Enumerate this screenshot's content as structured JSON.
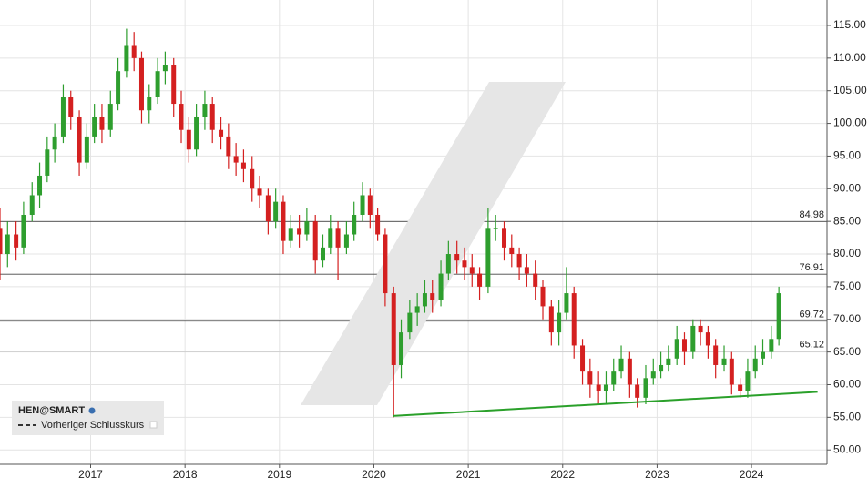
{
  "chart_data": {
    "type": "candlestick",
    "series": [
      {
        "name": "HEN@SMART",
        "up_color": "#2e9e2e",
        "down_color": "#d42020",
        "x": [
          2016.04,
          2016.12,
          2016.21,
          2016.29,
          2016.38,
          2016.46,
          2016.54,
          2016.62,
          2016.71,
          2016.79,
          2016.88,
          2016.96,
          2017.04,
          2017.12,
          2017.21,
          2017.29,
          2017.38,
          2017.46,
          2017.54,
          2017.62,
          2017.71,
          2017.79,
          2017.88,
          2017.96,
          2018.04,
          2018.12,
          2018.21,
          2018.29,
          2018.38,
          2018.46,
          2018.54,
          2018.62,
          2018.71,
          2018.79,
          2018.88,
          2018.96,
          2019.04,
          2019.12,
          2019.21,
          2019.29,
          2019.38,
          2019.46,
          2019.54,
          2019.62,
          2019.71,
          2019.79,
          2019.88,
          2019.96,
          2020.04,
          2020.12,
          2020.21,
          2020.29,
          2020.38,
          2020.46,
          2020.54,
          2020.62,
          2020.71,
          2020.79,
          2020.88,
          2020.96,
          2021.04,
          2021.12,
          2021.21,
          2021.29,
          2021.38,
          2021.46,
          2021.54,
          2021.62,
          2021.71,
          2021.79,
          2021.88,
          2021.96,
          2022.04,
          2022.12,
          2022.21,
          2022.29,
          2022.38,
          2022.46,
          2022.54,
          2022.62,
          2022.71,
          2022.79,
          2022.88,
          2022.96,
          2023.04,
          2023.12,
          2023.21,
          2023.29,
          2023.38,
          2023.46,
          2023.54,
          2023.62,
          2023.71,
          2023.79,
          2023.88,
          2023.96,
          2024.04,
          2024.12,
          2024.21,
          2024.29
        ],
        "open": [
          84,
          80,
          83,
          81,
          86,
          89,
          92,
          96,
          98,
          104,
          101,
          94,
          98,
          101,
          99,
          103,
          108,
          112,
          110,
          102,
          104,
          108,
          109,
          103,
          99,
          96,
          101,
          103,
          99,
          98,
          95,
          94,
          93,
          90,
          89,
          85,
          88,
          82,
          84,
          83,
          85,
          79,
          81,
          84,
          81,
          83,
          86,
          89,
          86,
          83,
          74,
          63,
          68,
          71,
          72,
          74,
          73,
          77,
          80,
          79,
          78,
          77,
          75,
          84,
          84,
          81,
          80,
          78,
          77,
          75,
          72,
          68,
          71,
          74,
          66,
          62,
          60,
          59,
          60,
          62,
          64,
          60,
          58,
          61,
          62,
          63,
          64,
          67,
          65,
          69,
          68,
          66,
          63,
          64,
          60,
          59,
          62,
          64,
          65,
          67
        ],
        "high": [
          87,
          85,
          85,
          88,
          91,
          94,
          98,
          100,
          106,
          105,
          102,
          100,
          103,
          103,
          105,
          110,
          114.5,
          114,
          111,
          106,
          110,
          111,
          110,
          105,
          101,
          103,
          105,
          104,
          101,
          100,
          97,
          96,
          95,
          92,
          90,
          90,
          89,
          86,
          86,
          87,
          86,
          83,
          86,
          85,
          85,
          88,
          91,
          90,
          87,
          84,
          75,
          70,
          73,
          74,
          76,
          76,
          79,
          82,
          82,
          81,
          80,
          78,
          87,
          86,
          85,
          83,
          81,
          80,
          79,
          76,
          73,
          73,
          78,
          75,
          67,
          64,
          62,
          62,
          64,
          66,
          65,
          61,
          63,
          64,
          65,
          66,
          69,
          68,
          70,
          70,
          69,
          67,
          66,
          65,
          61,
          64,
          66,
          67,
          69,
          75
        ],
        "low": [
          76,
          78,
          79,
          80,
          85,
          87,
          91,
          94,
          97,
          99,
          92,
          93,
          97,
          97,
          98,
          102,
          107,
          108,
          100,
          100,
          103,
          106,
          101,
          97,
          94,
          95,
          99,
          97,
          96,
          93,
          92,
          91,
          88,
          87,
          83,
          84,
          80,
          81,
          81,
          82,
          77,
          78,
          80,
          76,
          80,
          82,
          85,
          84,
          82,
          72,
          55,
          61,
          67,
          69,
          71,
          71,
          72,
          76,
          77,
          76,
          75,
          73,
          74,
          82,
          79,
          78,
          76,
          75,
          73,
          70,
          66,
          66,
          70,
          64,
          60,
          58,
          57,
          57,
          59,
          61,
          58,
          56.5,
          57,
          60,
          61,
          62,
          63,
          63,
          64,
          66,
          64,
          61,
          62,
          58.5,
          58,
          58,
          61,
          63,
          64,
          66
        ],
        "close": [
          80,
          83,
          81,
          86,
          89,
          92,
          96,
          98,
          104,
          101,
          94,
          98,
          101,
          99,
          103,
          108,
          112,
          110,
          102,
          104,
          108,
          109,
          103,
          99,
          96,
          101,
          103,
          99,
          98,
          95,
          94,
          93,
          90,
          89,
          85,
          88,
          82,
          84,
          83,
          85,
          79,
          81,
          84,
          81,
          83,
          86,
          89,
          86,
          83,
          74,
          63,
          68,
          71,
          72,
          74,
          73,
          77,
          80,
          79,
          78,
          77,
          75,
          84,
          84,
          81,
          80,
          78,
          77,
          75,
          72,
          68,
          71,
          74,
          66,
          62,
          60,
          59,
          60,
          62,
          64,
          60,
          58,
          61,
          62,
          63,
          64,
          67,
          65,
          69,
          68,
          66,
          63,
          64,
          60,
          59,
          62,
          64,
          65,
          67,
          74
        ]
      }
    ],
    "levels": [
      84.98,
      76.91,
      69.72,
      65.12
    ],
    "trendline": {
      "color": "#2aa02a",
      "x": [
        2020.2,
        2024.7
      ],
      "y": [
        55.2,
        58.9
      ]
    },
    "prev_close_label": "Vorheriger Schlusskurs",
    "xlim": [
      2016.04,
      2024.8
    ],
    "xticks": [
      2017,
      2018,
      2019,
      2020,
      2021,
      2022,
      2023,
      2024
    ],
    "ylim": [
      47.8,
      118.9
    ],
    "yticks": [
      {
        "value": 50,
        "label": "50.00"
      },
      {
        "value": 55,
        "label": "55.00"
      },
      {
        "value": 60,
        "label": "60.00"
      },
      {
        "value": 65,
        "label": "65.00"
      },
      {
        "value": 70,
        "label": "70.00"
      },
      {
        "value": 75,
        "label": "75.00"
      },
      {
        "value": 80,
        "label": "80.00"
      },
      {
        "value": 85,
        "label": "85.00"
      },
      {
        "value": 90,
        "label": "90.00"
      },
      {
        "value": 95,
        "label": "95.00"
      },
      {
        "value": 100,
        "label": "100.00"
      },
      {
        "value": 105,
        "label": "105.00"
      },
      {
        "value": 110,
        "label": "110.00"
      },
      {
        "value": 115,
        "label": "115.00"
      }
    ],
    "grid": true
  }
}
